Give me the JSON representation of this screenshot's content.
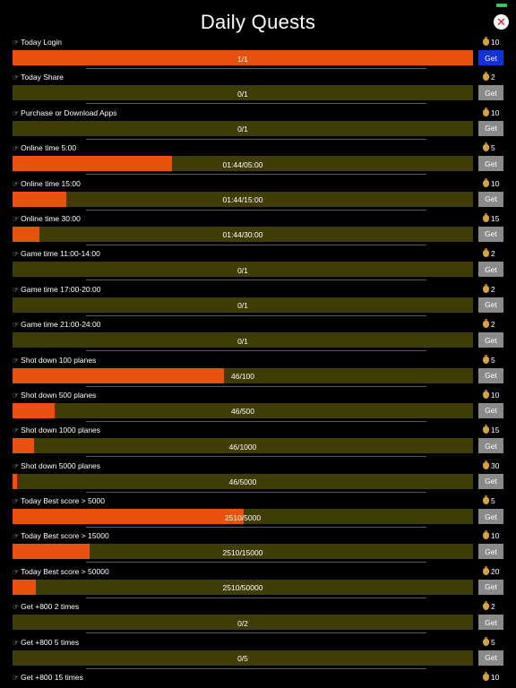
{
  "title": "Daily Quests",
  "close_symbol": "✕",
  "icons": {
    "bullet": "pointing-hand-icon",
    "reward": "money-bag-icon",
    "close": "close-icon"
  },
  "colors": {
    "background": "#000000",
    "progress_fill": "#e7520f",
    "progress_track": "#3f3d05",
    "get_button_active": "#1232d6",
    "get_button_inactive": "#8a8a8a",
    "close_x": "#e0161b"
  },
  "quests": [
    {
      "label": "Today Login",
      "reward": "10",
      "progress_text": "1/1",
      "progress": 1.0,
      "button": "Get",
      "button_active": true
    },
    {
      "label": "Today Share",
      "reward": "2",
      "progress_text": "0/1",
      "progress": 0.0,
      "button": "Get",
      "button_active": false
    },
    {
      "label": "Purchase or Download Apps",
      "reward": "10",
      "progress_text": "0/1",
      "progress": 0.0,
      "button": "Get",
      "button_active": false
    },
    {
      "label": "Online time 5:00",
      "reward": "5",
      "progress_text": "01:44/05:00",
      "progress": 0.347,
      "button": "Get",
      "button_active": false
    },
    {
      "label": "Online time 15:00",
      "reward": "10",
      "progress_text": "01:44/15:00",
      "progress": 0.116,
      "button": "Get",
      "button_active": false
    },
    {
      "label": "Online time 30:00",
      "reward": "15",
      "progress_text": "01:44/30:00",
      "progress": 0.058,
      "button": "Get",
      "button_active": false
    },
    {
      "label": "Game time 11:00-14:00",
      "reward": "2",
      "progress_text": "0/1",
      "progress": 0.0,
      "button": "Get",
      "button_active": false
    },
    {
      "label": "Game time 17:00-20:00",
      "reward": "2",
      "progress_text": "0/1",
      "progress": 0.0,
      "button": "Get",
      "button_active": false
    },
    {
      "label": "Game time 21:00-24:00",
      "reward": "2",
      "progress_text": "0/1",
      "progress": 0.0,
      "button": "Get",
      "button_active": false
    },
    {
      "label": "Shot down 100 planes",
      "reward": "5",
      "progress_text": "46/100",
      "progress": 0.46,
      "button": "Get",
      "button_active": false
    },
    {
      "label": "Shot down 500 planes",
      "reward": "10",
      "progress_text": "46/500",
      "progress": 0.092,
      "button": "Get",
      "button_active": false
    },
    {
      "label": "Shot down 1000 planes",
      "reward": "15",
      "progress_text": "46/1000",
      "progress": 0.046,
      "button": "Get",
      "button_active": false
    },
    {
      "label": "Shot down 5000 planes",
      "reward": "30",
      "progress_text": "46/5000",
      "progress": 0.0092,
      "button": "Get",
      "button_active": false
    },
    {
      "label": "Today Best score > 5000",
      "reward": "5",
      "progress_text": "2510/5000",
      "progress": 0.502,
      "button": "Get",
      "button_active": false
    },
    {
      "label": "Today Best score > 15000",
      "reward": "10",
      "progress_text": "2510/15000",
      "progress": 0.167,
      "button": "Get",
      "button_active": false
    },
    {
      "label": "Today Best score > 50000",
      "reward": "20",
      "progress_text": "2510/50000",
      "progress": 0.05,
      "button": "Get",
      "button_active": false
    },
    {
      "label": "Get +800 2 times",
      "reward": "2",
      "progress_text": "0/2",
      "progress": 0.0,
      "button": "Get",
      "button_active": false
    },
    {
      "label": "Get +800 5 times",
      "reward": "5",
      "progress_text": "0/5",
      "progress": 0.0,
      "button": "Get",
      "button_active": false
    },
    {
      "label": "Get +800 15 times",
      "reward": "10",
      "progress_text": "",
      "progress": null,
      "button": "",
      "button_active": false
    }
  ]
}
